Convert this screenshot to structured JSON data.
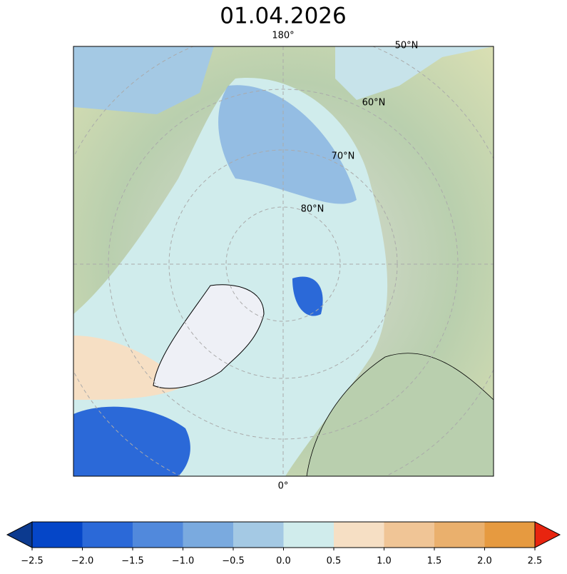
{
  "title": "01.04.2026",
  "map": {
    "lon_labels": [
      "180°",
      "0°"
    ],
    "lat_labels": [
      "50°N",
      "60°N",
      "70°N",
      "80°N"
    ]
  },
  "colorbar": {
    "ticks": [
      {
        "value": -2.5,
        "label": "−2.5"
      },
      {
        "value": -2,
        "label": "−2.0"
      },
      {
        "value": -1.5,
        "label": "−1.5"
      },
      {
        "value": -1,
        "label": "−1.0"
      },
      {
        "value": -0.5,
        "label": "−0.5"
      },
      {
        "value": 0,
        "label": "0.0"
      },
      {
        "value": 0.5,
        "label": "0.5"
      },
      {
        "value": 1,
        "label": "1.0"
      },
      {
        "value": 1.5,
        "label": "1.5"
      },
      {
        "value": 2,
        "label": "2.0"
      },
      {
        "value": 2.5,
        "label": "2.5"
      }
    ],
    "colors": [
      "#0546c8",
      "#2b69d8",
      "#5189dc",
      "#7aaadf",
      "#a4c9e4",
      "#d0ecec",
      "#f6dfc4",
      "#f0c596",
      "#eab06d",
      "#e69a40"
    ],
    "under_color": "#0c3a8f",
    "over_color": "#e8240f"
  }
}
